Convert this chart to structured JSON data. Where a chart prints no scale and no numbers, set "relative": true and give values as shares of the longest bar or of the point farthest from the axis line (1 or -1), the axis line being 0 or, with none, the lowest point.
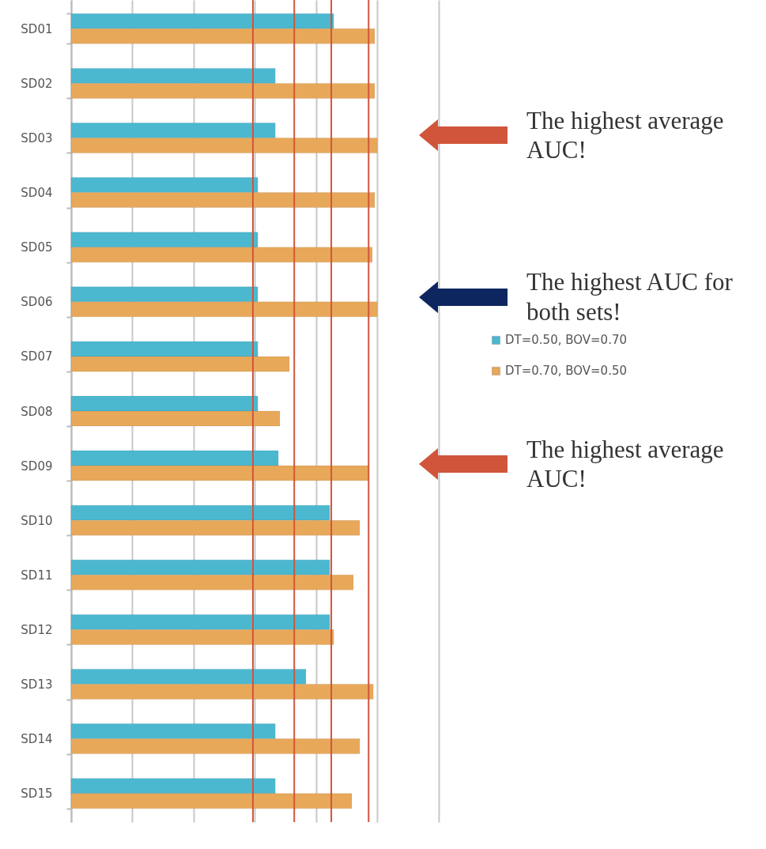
{
  "chart_data": {
    "type": "bar",
    "orientation": "horizontal",
    "relative": true,
    "grid": "x",
    "legend": "right",
    "categories": [
      "SD01",
      "SD02",
      "SD03",
      "SD04",
      "SD05",
      "SD06",
      "SD07",
      "SD08",
      "SD09",
      "SD10",
      "SD11",
      "SD12",
      "SD13",
      "SD14",
      "SD15"
    ],
    "series": [
      {
        "name": "DT=0.50, BOV=0.70",
        "color": "#4bb8d0",
        "values": [
          0.858,
          0.667,
          0.667,
          0.61,
          0.61,
          0.61,
          0.61,
          0.61,
          0.677,
          0.845,
          0.845,
          0.845,
          0.767,
          0.667,
          0.667
        ]
      },
      {
        "name": "DT=0.70, BOV=0.50",
        "color": "#e8a85a",
        "values": [
          0.992,
          0.992,
          1,
          0.992,
          0.984,
          1,
          0.713,
          0.682,
          0.972,
          0.943,
          0.922,
          0.858,
          0.987,
          0.943,
          0.917
        ]
      }
    ],
    "ref_lines": [
      {
        "axis": "x",
        "value": 0.594,
        "color": "#d0553a"
      },
      {
        "axis": "x",
        "value": 0.729,
        "color": "#d0553a"
      },
      {
        "axis": "x",
        "value": 0.85,
        "color": "#d0553a"
      },
      {
        "axis": "x",
        "value": 0.972,
        "color": "#d0553a"
      }
    ],
    "annotations": [
      "The highest average AUC!",
      "The highest AUC for both sets!",
      "The highest average AUC!"
    ]
  }
}
